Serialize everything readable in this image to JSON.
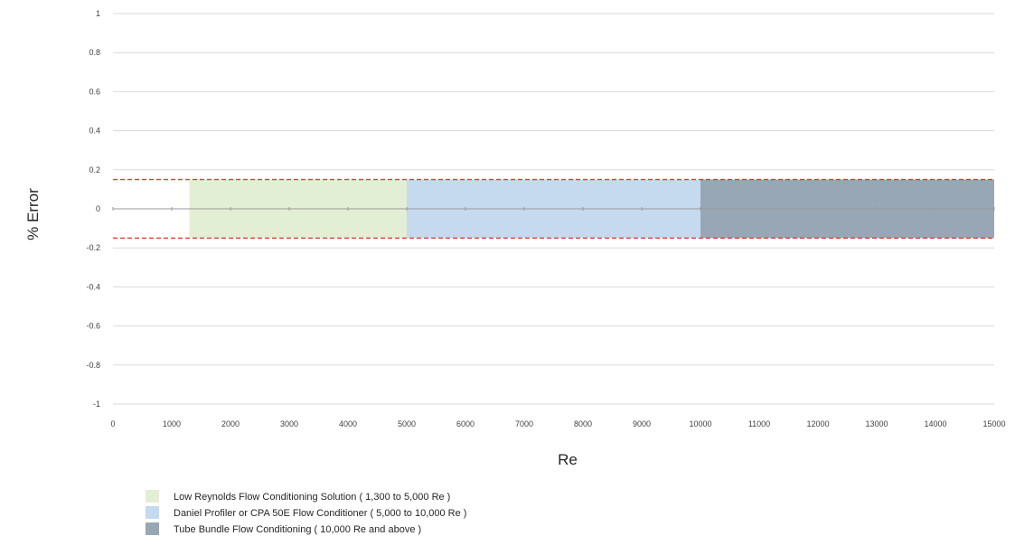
{
  "chart_data": {
    "type": "area",
    "xlabel": "Re",
    "ylabel": "% Error",
    "xlim": [
      0,
      15000
    ],
    "ylim": [
      -1,
      1
    ],
    "x_ticks": [
      0,
      1000,
      2000,
      3000,
      4000,
      5000,
      6000,
      7000,
      8000,
      9000,
      10000,
      11000,
      12000,
      13000,
      14000,
      15000
    ],
    "y_ticks": [
      1,
      0.8,
      0.6,
      0.4,
      0.2,
      0,
      -0.2,
      -0.4,
      -0.6,
      -0.8,
      -1
    ],
    "grid": "horizontal",
    "legend_position": "bottom-left",
    "bands": [
      {
        "name": "Low Reynolds Flow Conditioning Solution ( 1,300 to 5,000 Re )",
        "x": [
          1300,
          5000
        ],
        "y": [
          -0.15,
          0.15
        ],
        "color": "#e3efd4"
      },
      {
        "name": "Daniel Profiler or CPA 50E Flow Conditioner ( 5,000 to 10,000 Re )",
        "x": [
          5000,
          10000
        ],
        "y": [
          -0.15,
          0.15
        ],
        "color": "#c5d9ef"
      },
      {
        "name": "Tube Bundle Flow Conditioning ( 10,000 Re and above )",
        "x": [
          10000,
          15000
        ],
        "y": [
          -0.15,
          0.15
        ],
        "color": "#97a7b6"
      }
    ],
    "limit_lines": [
      {
        "y": 0.15,
        "color": "#e03c2d",
        "style": "dashed"
      },
      {
        "y": -0.15,
        "color": "#e03c2d",
        "style": "dashed"
      }
    ]
  }
}
